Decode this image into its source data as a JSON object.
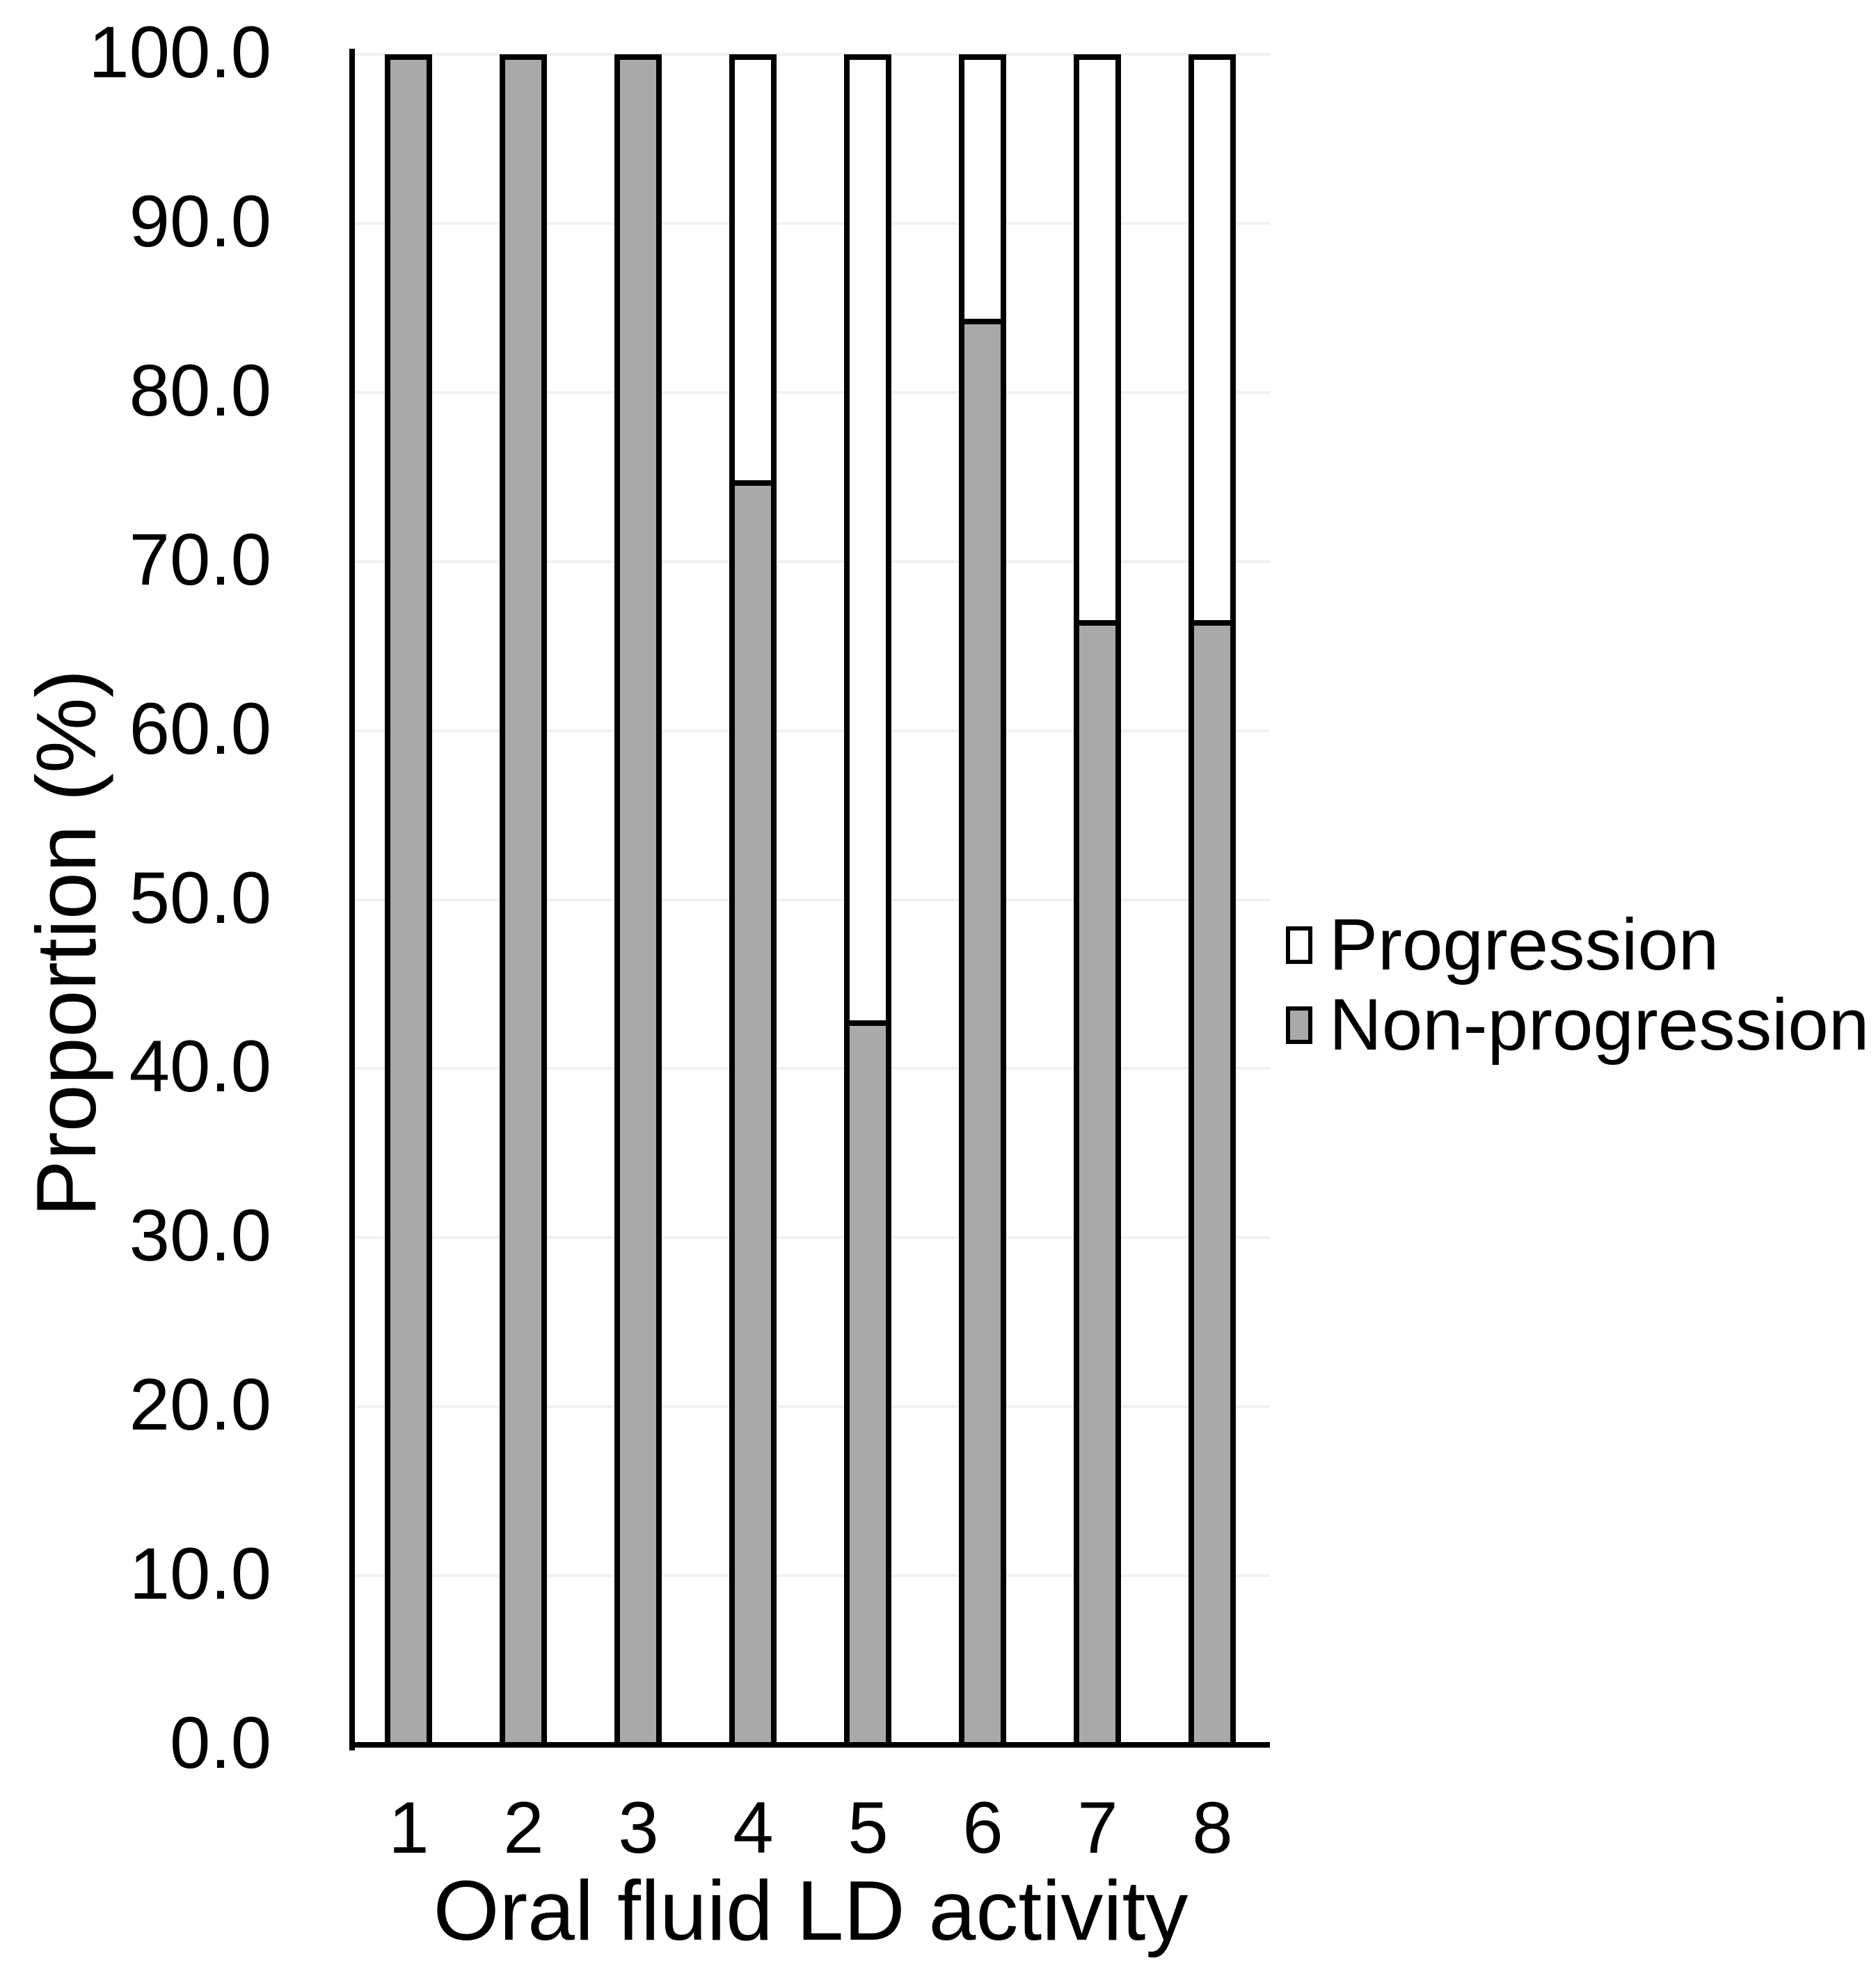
{
  "chart_data": {
    "type": "bar",
    "subtype": "stacked-column",
    "title": "",
    "xlabel": "Oral fluid LD activity",
    "ylabel": "Proportion (%)",
    "categories": [
      "1",
      "2",
      "3",
      "4",
      "5",
      "6",
      "7",
      "8"
    ],
    "series": [
      {
        "name": "Progression",
        "color": "#ffffff",
        "values": [
          0.0,
          0.0,
          0.0,
          25.0,
          57.1,
          15.4,
          33.3,
          33.3
        ]
      },
      {
        "name": "Non-progression",
        "color": "#a9a9a9",
        "values": [
          100.0,
          100.0,
          100.0,
          75.0,
          42.9,
          84.6,
          66.7,
          66.7
        ]
      }
    ],
    "ylim": [
      0,
      100
    ],
    "yticks": [
      {
        "value": 0,
        "label": "0.0"
      },
      {
        "value": 10,
        "label": "10.0"
      },
      {
        "value": 20,
        "label": "20.0"
      },
      {
        "value": 30,
        "label": "30.0"
      },
      {
        "value": 40,
        "label": "40.0"
      },
      {
        "value": 50,
        "label": "50.0"
      },
      {
        "value": 60,
        "label": "60.0"
      },
      {
        "value": 70,
        "label": "70.0"
      },
      {
        "value": 80,
        "label": "80.0"
      },
      {
        "value": 90,
        "label": "90.0"
      },
      {
        "value": 100,
        "label": "100.0"
      }
    ],
    "grid": true,
    "gridline_color": "#f1f1f1",
    "bar_outline_color": "#000000",
    "legend_position": "right",
    "legend": [
      {
        "label": "Progression",
        "fill": "#ffffff"
      },
      {
        "label": "Non-progression",
        "fill": "#a9a9a9"
      }
    ]
  }
}
